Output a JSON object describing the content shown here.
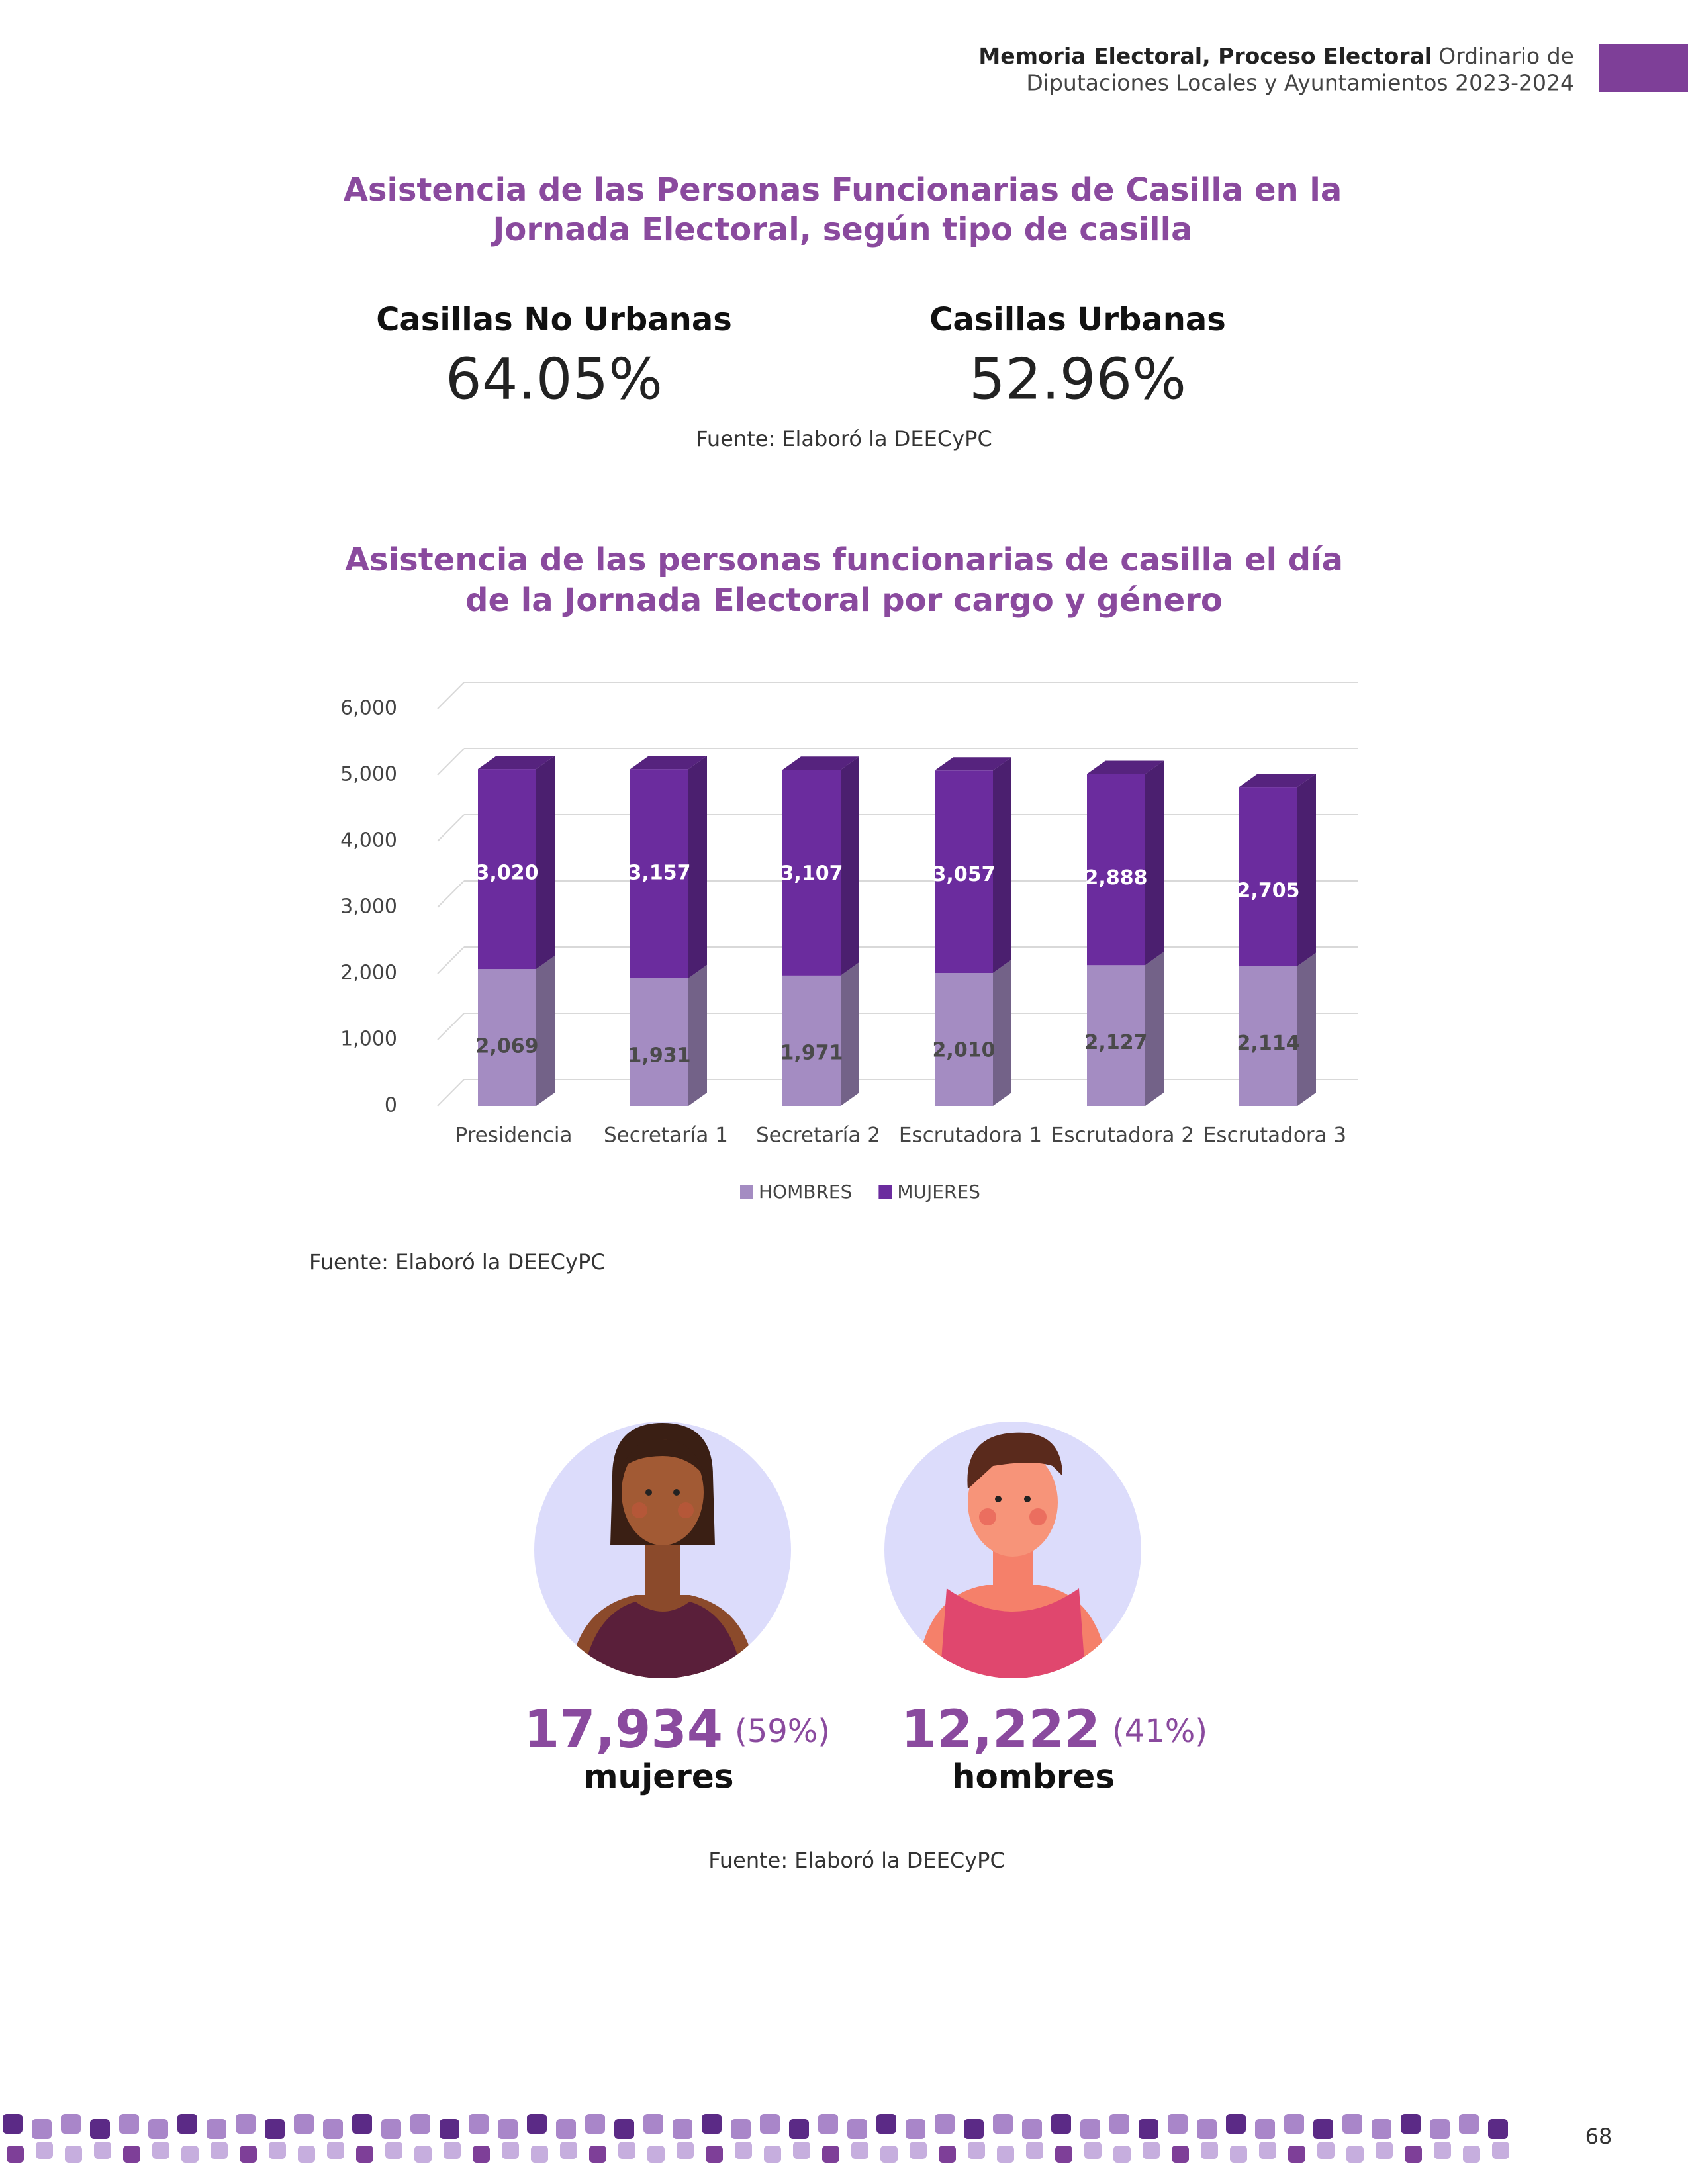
{
  "header": {
    "bold": "Memoria Electoral, Proceso Electoral",
    "rest": "Ordinario de",
    "line2": "Diputaciones Locales y Ayuntamientos 2023-2024"
  },
  "section1": {
    "title": [
      "Asistencia de las Personas Funcionarias de Casilla en la",
      "Jornada Electoral, según tipo de casilla"
    ],
    "stats": [
      {
        "label": "Casillas No Urbanas",
        "value": "64.05%"
      },
      {
        "label": "Casillas Urbanas",
        "value": "52.96%"
      }
    ],
    "source": "Fuente: Elaboró la DEECyPC"
  },
  "chart_data": {
    "type": "bar",
    "stacked": true,
    "title": [
      "Asistencia de las personas funcionarias de casilla el día",
      "de la Jornada Electoral por cargo y género"
    ],
    "categories": [
      "Presidencia",
      "Secretaría 1",
      "Secretaría 2",
      "Escrutadora 1",
      "Escrutadora 2",
      "Escrutadora 3"
    ],
    "series": [
      {
        "name": "HOMBRES",
        "color": "#a48cc2",
        "label_color": "#4a4a4a",
        "values": [
          2069,
          1931,
          1971,
          2010,
          2127,
          2114
        ],
        "value_labels": [
          "2,069",
          "1,931",
          "1,971",
          "2,010",
          "2,127",
          "2,114"
        ]
      },
      {
        "name": "MUJERES",
        "color": "#6b2c9e",
        "label_color": "#ffffff",
        "values": [
          3020,
          3157,
          3107,
          3057,
          2888,
          2705
        ],
        "value_labels": [
          "3,020",
          "3,157",
          "3,107",
          "3,057",
          "2,888",
          "2,705"
        ]
      }
    ],
    "ylim": [
      0,
      6000
    ],
    "yticks": [
      0,
      {
        "value": 1000,
        "label": "1,000"
      },
      {
        "value": 2000,
        "label": "2,000"
      },
      {
        "value": 3000,
        "label": "3,000"
      },
      {
        "value": 4000,
        "label": "4,000"
      },
      {
        "value": 5000,
        "label": "5,000"
      },
      {
        "value": 6000,
        "label": "6,000"
      }
    ],
    "grid": true,
    "legend": "bottom"
  },
  "chart_source": "Fuente: Elaboró la DEECyPC",
  "people": [
    {
      "count": "17,934",
      "pct": "(59%)",
      "label": "mujeres"
    },
    {
      "count": "12,222",
      "pct": "(41%)",
      "label": "hombres"
    }
  ],
  "people_source": "Fuente: Elaboró la DEECyPC",
  "page_number": "68"
}
